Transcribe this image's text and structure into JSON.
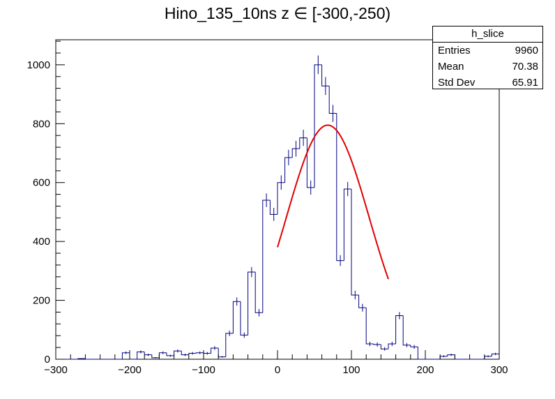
{
  "title": "Hino_135_10ns z  ∈ [-300,-250)",
  "stats": {
    "name": "h_slice",
    "rows": [
      {
        "label": "Entries",
        "value": "9960"
      },
      {
        "label": "Mean",
        "value": "70.38"
      },
      {
        "label": "Std Dev",
        "value": "65.91"
      }
    ]
  },
  "colors": {
    "histogram": "#000080",
    "fit": "#e00000",
    "axis": "#000000"
  },
  "chart_data": {
    "type": "histogram",
    "title": "Hino_135_10ns z  ∈ [-300,-250)",
    "xlabel": "",
    "ylabel": "",
    "xlim": [
      -300,
      300
    ],
    "ylim": [
      0,
      1085
    ],
    "bin_width": 10,
    "x_ticks": [
      -300,
      -200,
      -100,
      0,
      100,
      200,
      300
    ],
    "y_ticks": [
      0,
      200,
      400,
      600,
      800,
      1000
    ],
    "bins": [
      {
        "x": -300,
        "y": 0,
        "err": 0
      },
      {
        "x": -290,
        "y": 0,
        "err": 0
      },
      {
        "x": -280,
        "y": 0,
        "err": 0
      },
      {
        "x": -270,
        "y": 2,
        "err": 1.4
      },
      {
        "x": -260,
        "y": 0,
        "err": 0
      },
      {
        "x": -250,
        "y": 0,
        "err": 0
      },
      {
        "x": -240,
        "y": 0,
        "err": 0
      },
      {
        "x": -230,
        "y": 0,
        "err": 0
      },
      {
        "x": -220,
        "y": 0,
        "err": 0
      },
      {
        "x": -210,
        "y": 22,
        "err": 4.7
      },
      {
        "x": -200,
        "y": 0,
        "err": 0
      },
      {
        "x": -190,
        "y": 25,
        "err": 5
      },
      {
        "x": -180,
        "y": 15,
        "err": 3.9
      },
      {
        "x": -170,
        "y": 5,
        "err": 2.2
      },
      {
        "x": -160,
        "y": 22,
        "err": 4.7
      },
      {
        "x": -150,
        "y": 12,
        "err": 3.5
      },
      {
        "x": -140,
        "y": 28,
        "err": 5.3
      },
      {
        "x": -130,
        "y": 15,
        "err": 3.9
      },
      {
        "x": -120,
        "y": 20,
        "err": 4.5
      },
      {
        "x": -110,
        "y": 22,
        "err": 4.7
      },
      {
        "x": -100,
        "y": 20,
        "err": 4.5
      },
      {
        "x": -90,
        "y": 38,
        "err": 6.2
      },
      {
        "x": -80,
        "y": 8,
        "err": 2.8
      },
      {
        "x": -70,
        "y": 88,
        "err": 9.4
      },
      {
        "x": -60,
        "y": 196,
        "err": 14
      },
      {
        "x": -50,
        "y": 82,
        "err": 9.1
      },
      {
        "x": -40,
        "y": 296,
        "err": 17.2
      },
      {
        "x": -30,
        "y": 158,
        "err": 12.6
      },
      {
        "x": -20,
        "y": 540,
        "err": 23.2
      },
      {
        "x": -10,
        "y": 492,
        "err": 22.2
      },
      {
        "x": 0,
        "y": 600,
        "err": 24.5
      },
      {
        "x": 10,
        "y": 685,
        "err": 26.2
      },
      {
        "x": 20,
        "y": 715,
        "err": 26.7
      },
      {
        "x": 30,
        "y": 752,
        "err": 27.4
      },
      {
        "x": 40,
        "y": 583,
        "err": 24.1
      },
      {
        "x": 50,
        "y": 1000,
        "err": 31.6
      },
      {
        "x": 60,
        "y": 928,
        "err": 30.5
      },
      {
        "x": 70,
        "y": 835,
        "err": 28.9
      },
      {
        "x": 80,
        "y": 335,
        "err": 18.3
      },
      {
        "x": 90,
        "y": 578,
        "err": 24
      },
      {
        "x": 100,
        "y": 218,
        "err": 14.8
      },
      {
        "x": 110,
        "y": 175,
        "err": 13.2
      },
      {
        "x": 120,
        "y": 52,
        "err": 7.2
      },
      {
        "x": 130,
        "y": 50,
        "err": 7.1
      },
      {
        "x": 140,
        "y": 35,
        "err": 5.9
      },
      {
        "x": 150,
        "y": 52,
        "err": 7.2
      },
      {
        "x": 160,
        "y": 148,
        "err": 12.2
      },
      {
        "x": 170,
        "y": 48,
        "err": 6.9
      },
      {
        "x": 180,
        "y": 42,
        "err": 6.5
      },
      {
        "x": 190,
        "y": 0,
        "err": 0
      },
      {
        "x": 200,
        "y": 0,
        "err": 0
      },
      {
        "x": 210,
        "y": 0,
        "err": 0
      },
      {
        "x": 220,
        "y": 10,
        "err": 3.2
      },
      {
        "x": 230,
        "y": 15,
        "err": 3.9
      },
      {
        "x": 240,
        "y": 0,
        "err": 0
      },
      {
        "x": 250,
        "y": 0,
        "err": 0
      },
      {
        "x": 260,
        "y": 0,
        "err": 0
      },
      {
        "x": 270,
        "y": 0,
        "err": 0
      },
      {
        "x": 280,
        "y": 10,
        "err": 3.2
      },
      {
        "x": 290,
        "y": 18,
        "err": 4.2
      }
    ],
    "fit": {
      "type": "gaus",
      "constant": 795,
      "mean": 68,
      "sigma": 56,
      "range": [
        0,
        150
      ]
    },
    "grid": false,
    "legend": "top-right"
  }
}
